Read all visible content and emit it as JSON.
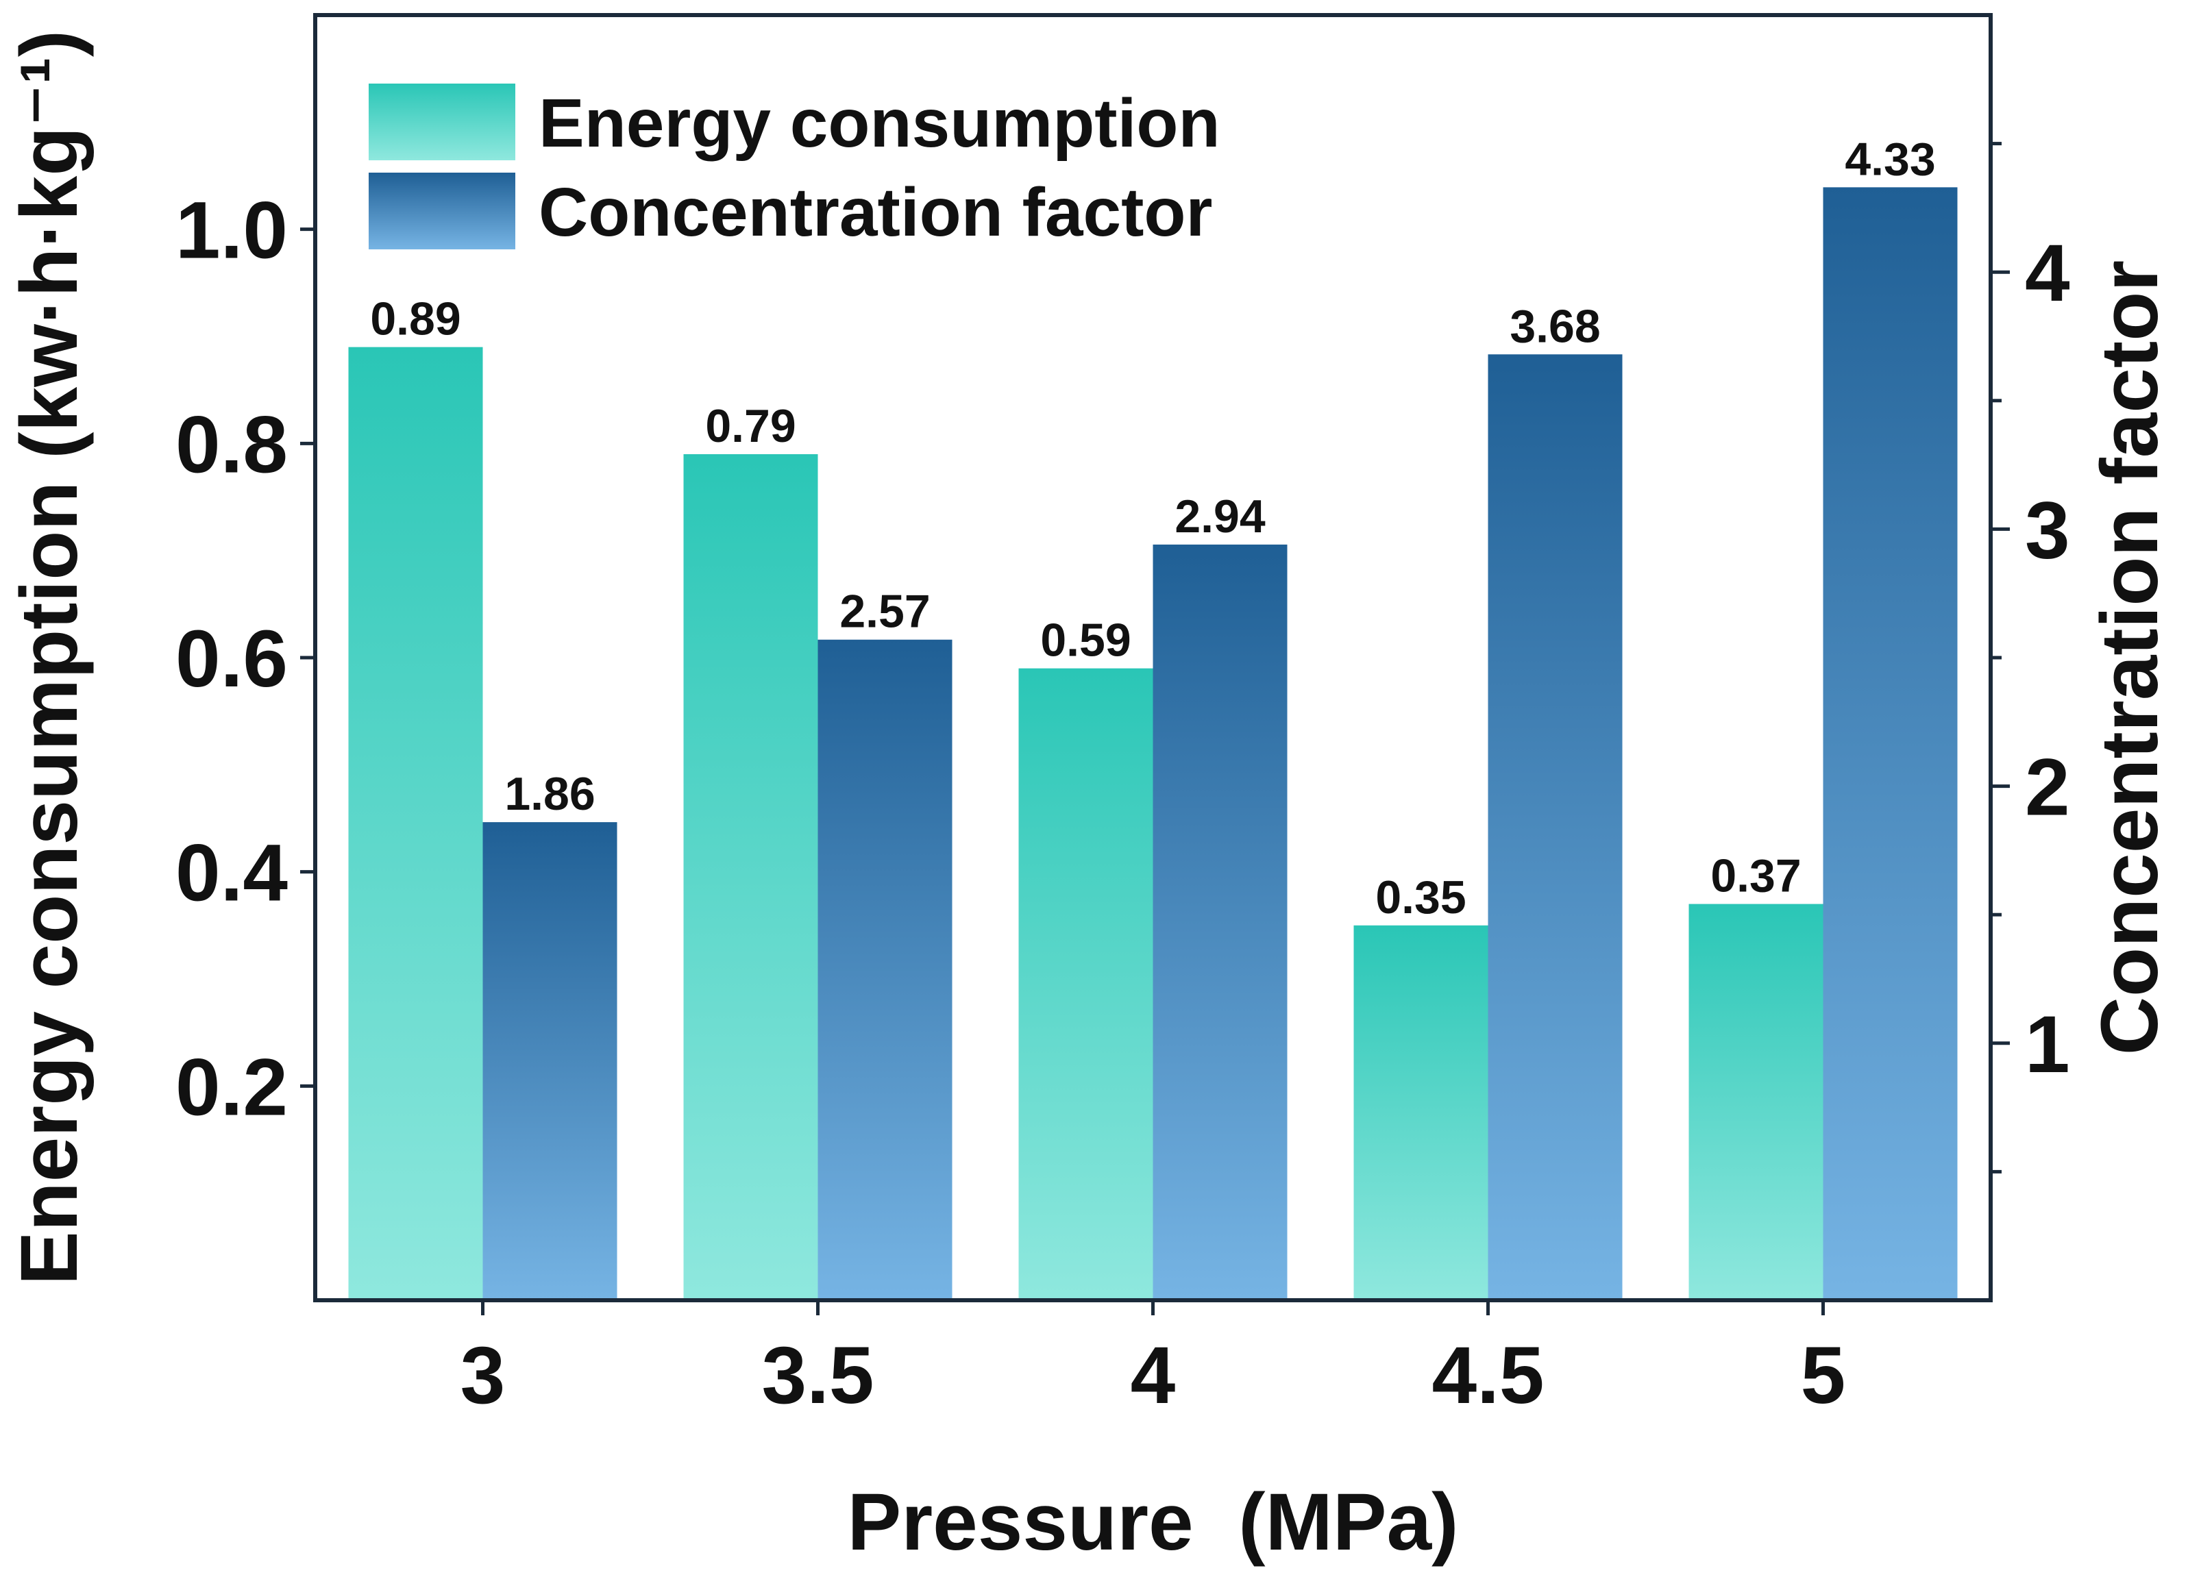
{
  "chart_data": {
    "type": "bar",
    "xlabel": "Pressure  (MPa)",
    "ylabel_left": "Energy consumption (kw·h·kg⁻¹)",
    "ylabel_right": "Concentration factor",
    "categories": [
      "3",
      "3.5",
      "4",
      "4.5",
      "5"
    ],
    "series": [
      {
        "name": "Energy consumption",
        "axis": "left",
        "values": [
          0.89,
          0.79,
          0.59,
          0.35,
          0.37
        ],
        "labels": [
          "0.89",
          "0.79",
          "0.59",
          "0.35",
          "0.37"
        ],
        "color_top": "#2ac6b6",
        "color_bottom": "#8fe8de"
      },
      {
        "name": "Concentration factor",
        "axis": "right",
        "values": [
          1.86,
          2.57,
          2.94,
          3.68,
          4.33
        ],
        "labels": [
          "1.86",
          "2.57",
          "2.94",
          "3.68",
          "4.33"
        ],
        "color_top": "#1f5f95",
        "color_bottom": "#76b4e4"
      }
    ],
    "ylim_left": [
      0,
      1.2
    ],
    "ylim_right": [
      0,
      5
    ],
    "yticks_left": [
      0.2,
      0.4,
      0.6,
      0.8,
      1.0
    ],
    "yticks_left_labels": [
      "0.2",
      "0.4",
      "0.6",
      "0.8",
      "1.0"
    ],
    "yticks_right": [
      1,
      2,
      3,
      4
    ],
    "yticks_right_labels": [
      "1",
      "2",
      "3",
      "4"
    ],
    "yticks_right_minor": [
      0.5,
      1.5,
      2.5,
      3.5,
      4.5
    ],
    "legend_position": "top-left",
    "grid": false,
    "frame_color": "#1b2a3a"
  }
}
